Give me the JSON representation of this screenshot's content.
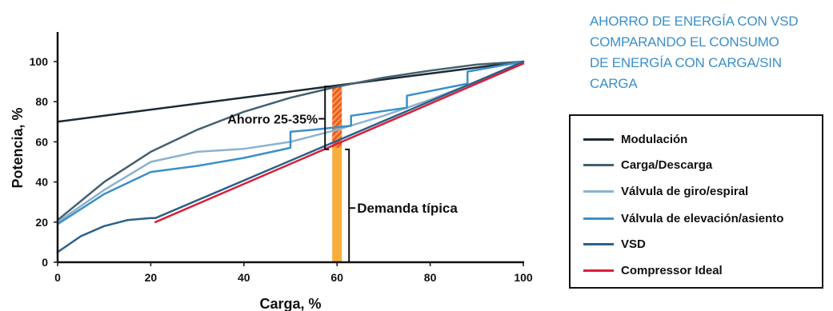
{
  "title_lines": [
    "AHORRO DE ENERGÍA CON VSD",
    "COMPARANDO EL CONSUMO",
    "DE ENERGÍA CON CARGA/SIN",
    "CARGA"
  ],
  "chart_data": {
    "type": "line",
    "xlabel": "Carga, %",
    "ylabel": "Potencia, %",
    "xlim": [
      0,
      100
    ],
    "ylim": [
      0,
      100
    ],
    "xticks": [
      0,
      20,
      40,
      60,
      80,
      100
    ],
    "yticks": [
      0,
      20,
      40,
      60,
      80,
      100
    ],
    "grid": false,
    "legend_position": "right",
    "series": [
      {
        "name": "Modulación",
        "color": "#1c2a33",
        "x": [
          0,
          58,
          100
        ],
        "y": [
          70,
          87.5,
          100
        ]
      },
      {
        "name": "Carga/Descarga",
        "color": "#44606f",
        "x": [
          0,
          10,
          20,
          30,
          40,
          50,
          60,
          70,
          80,
          90,
          100
        ],
        "y": [
          21,
          40,
          55,
          66,
          75,
          82,
          87.5,
          92,
          95.5,
          98.5,
          100
        ]
      },
      {
        "name": "Válvula de giro/espiral",
        "color": "#8cb2cf",
        "x": [
          0,
          10,
          20,
          30,
          40,
          50,
          60,
          70,
          80,
          90,
          100
        ],
        "y": [
          20,
          36,
          50,
          55,
          56.5,
          60,
          66,
          73,
          81,
          90,
          100
        ]
      },
      {
        "name": "Válvula de elevación/asiento",
        "color": "#3b8fc9",
        "x": [
          0,
          10,
          20,
          30,
          40,
          50,
          50,
          55,
          63,
          63,
          75,
          75,
          88,
          88,
          100
        ],
        "y": [
          19,
          34,
          45,
          48,
          52,
          57,
          65,
          66,
          68,
          73,
          77,
          83,
          89,
          95,
          100
        ]
      },
      {
        "name": "VSD",
        "color": "#2c6088",
        "x": [
          0,
          5,
          10,
          15,
          20,
          21,
          100
        ],
        "y": [
          5,
          13,
          18,
          21,
          22,
          22,
          100
        ]
      },
      {
        "name": "Compressor Ideal",
        "color": "#d81f3a",
        "x": [
          21,
          100
        ],
        "y": [
          20,
          99
        ]
      }
    ],
    "annotations": [
      {
        "text": "Ahorro 25-35%",
        "color": "#ef6b2b",
        "x": 60,
        "y_range": [
          57,
          88
        ]
      },
      {
        "text": "Demanda típica",
        "color": "#f7ae3c",
        "x": 60,
        "y_range": [
          0,
          57
        ]
      }
    ]
  }
}
